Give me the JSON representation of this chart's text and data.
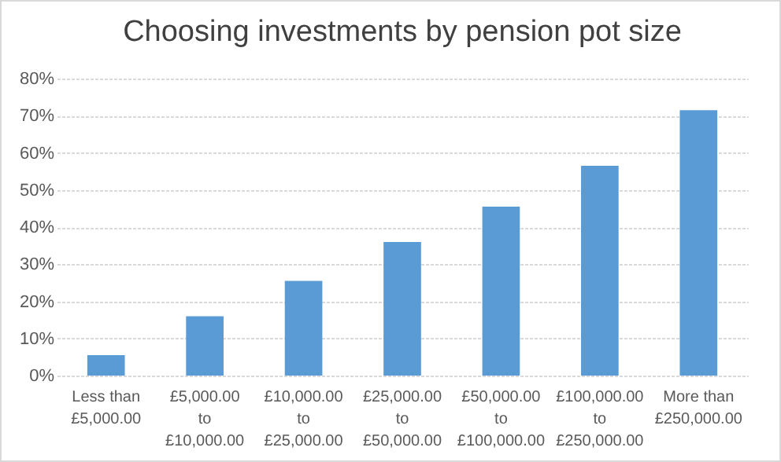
{
  "chart_data": {
    "type": "bar",
    "title": "Choosing investments by pension pot size",
    "categories": [
      "Less than £5,000.00",
      "£5,000.00 to £10,000.00",
      "£10,000.00 to £25,000.00",
      "£25,000.00 to £50,000.00",
      "£50,000.00 to £100,000.00",
      "£100,000.00 to £250,000.00",
      "More than £250,000.00"
    ],
    "values": [
      5.5,
      16,
      25.5,
      36,
      45.5,
      56.5,
      71.5
    ],
    "color": "#5b9bd5",
    "ylim": [
      0,
      80
    ],
    "yticks": [
      {
        "value": 0,
        "label": "0%"
      },
      {
        "value": 10,
        "label": "10%"
      },
      {
        "value": 20,
        "label": "20%"
      },
      {
        "value": 30,
        "label": "30%"
      },
      {
        "value": 40,
        "label": "40%"
      },
      {
        "value": 50,
        "label": "50%"
      },
      {
        "value": 60,
        "label": "60%"
      },
      {
        "value": 70,
        "label": "70%"
      },
      {
        "value": 80,
        "label": "80%"
      }
    ],
    "grid": "y"
  }
}
